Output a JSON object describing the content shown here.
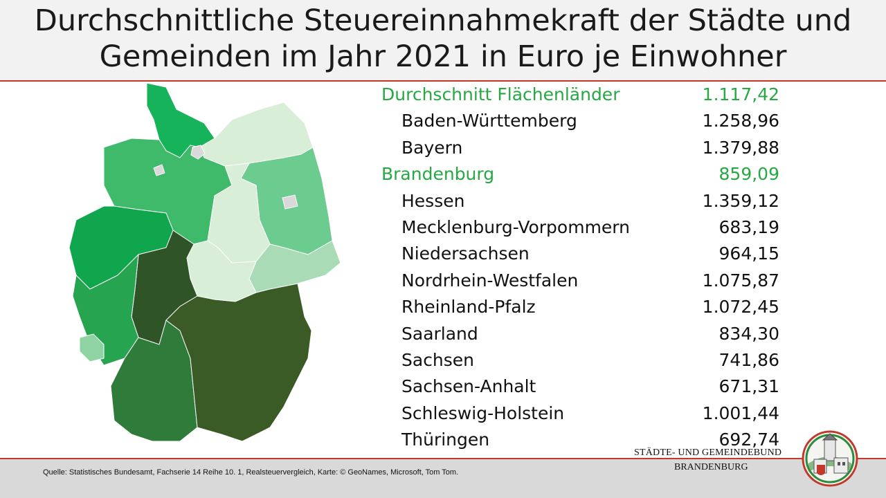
{
  "slide": {
    "title": "Durchschnittliche Steuereinnahmekraft der Städte und Gemeinden im Jahr 2021 in Euro je Einwohner"
  },
  "table": {
    "rows": [
      {
        "label": "Durchschnitt Flächenländer",
        "value": "1.117,42",
        "highlight": true
      },
      {
        "label": "Baden-Württemberg",
        "value": "1.258,96",
        "highlight": false
      },
      {
        "label": "Bayern",
        "value": "1.379,88",
        "highlight": false
      },
      {
        "label": "Brandenburg",
        "value": "859,09",
        "highlight": true
      },
      {
        "label": "Hessen",
        "value": "1.359,12",
        "highlight": false
      },
      {
        "label": "Mecklenburg-Vorpommern",
        "value": "683,19",
        "highlight": false
      },
      {
        "label": "Niedersachsen",
        "value": "964,15",
        "highlight": false
      },
      {
        "label": "Nordrhein-Westfalen",
        "value": "1.075,87",
        "highlight": false
      },
      {
        "label": "Rheinland-Pfalz",
        "value": "1.072,45",
        "highlight": false
      },
      {
        "label": "Saarland",
        "value": "834,30",
        "highlight": false
      },
      {
        "label": "Sachsen",
        "value": "741,86",
        "highlight": false
      },
      {
        "label": "Sachsen-Anhalt",
        "value": "671,31",
        "highlight": false
      },
      {
        "label": "Schleswig-Holstein",
        "value": "1.001,44",
        "highlight": false
      },
      {
        "label": "Thüringen",
        "value": "692,74",
        "highlight": false
      }
    ]
  },
  "map": {
    "colors": {
      "Schleswig-Holstein": "#17b35a",
      "Mecklenburg-Vorpommern": "#d9eed6",
      "Niedersachsen": "#3fb96a",
      "Brandenburg": "#6ccb8e",
      "Berlin": "#d9d9d9",
      "Hamburg": "#d9d9d9",
      "Bremen": "#d9d9d9",
      "Sachsen-Anhalt": "#d9eed6",
      "Sachsen": "#a9dcb6",
      "Thüringen": "#d9eed6",
      "Nordrhein-Westfalen": "#0fa64e",
      "Hessen": "#2f5428",
      "Rheinland-Pfalz": "#27a44f",
      "Saarland": "#8fd3a3",
      "Baden-Württemberg": "#2f7b3a",
      "Bayern": "#3a5a26"
    }
  },
  "footer": {
    "source": "Quelle: Statistisches Bundesamt, Fachserie 14 Reihe 10. 1, Realsteuervergleich, Karte: © GeoNames,  Microsoft, Tom Tom.",
    "brand_line1": "STÄDTE-  UND GEMEINDEBUND",
    "brand_line2": "BRANDENBURG"
  }
}
